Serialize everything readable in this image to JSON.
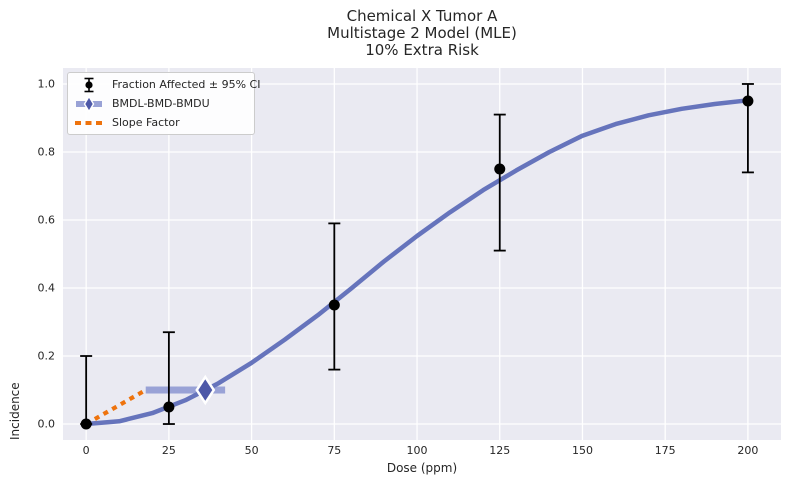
{
  "figure": {
    "title_lines": [
      "Chemical X Tumor A",
      "Multistage 2 Model (MLE)",
      "10% Extra Risk"
    ]
  },
  "axes": {
    "xlabel": "Dose (ppm)",
    "ylabel": "Incidence"
  },
  "legend": {
    "items": [
      {
        "id": "fraction-affected",
        "label": "Fraction Affected ± 95% CI",
        "color": "#000000"
      },
      {
        "id": "bmd-interval",
        "label": "BMDL-BMD-BMDU",
        "color": "#99a2d6",
        "diamond_color": "#4d58a8"
      },
      {
        "id": "slope-factor",
        "label": "Slope Factor",
        "color": "#ee730d"
      }
    ]
  },
  "chart_data": {
    "type": "line",
    "title": "Chemical X Tumor A — Multistage 2 Model (MLE) — 10% Extra Risk",
    "xlabel": "Dose (ppm)",
    "ylabel": "Incidence",
    "xlim": [
      -7,
      210
    ],
    "ylim": [
      -0.047,
      1.047
    ],
    "x_ticks": [
      0,
      25,
      50,
      75,
      100,
      125,
      150,
      175,
      200
    ],
    "y_ticks": [
      0.0,
      0.2,
      0.4,
      0.6,
      0.8,
      1.0
    ],
    "grid": true,
    "background": "#eaeaf2",
    "gridline_color": "#ffffff",
    "legend_position": "upper left",
    "series": [
      {
        "name": "Multistage 2 model fit",
        "type": "line",
        "color": "#6674bc",
        "x": [
          0,
          10,
          20,
          30,
          40,
          50,
          60,
          70,
          80,
          90,
          100,
          110,
          120,
          130,
          140,
          150,
          160,
          170,
          180,
          190,
          200
        ],
        "y": [
          0.0,
          0.008,
          0.032,
          0.07,
          0.12,
          0.18,
          0.248,
          0.32,
          0.398,
          0.478,
          0.553,
          0.623,
          0.688,
          0.746,
          0.8,
          0.848,
          0.882,
          0.908,
          0.927,
          0.941,
          0.952
        ]
      },
      {
        "name": "Fraction Affected ± 95% CI",
        "type": "scatter-errorbar",
        "color": "#000000",
        "points": [
          {
            "dose": 0,
            "incidence": 0.0,
            "ci_lower": 0.0,
            "ci_upper": 0.2
          },
          {
            "dose": 25,
            "incidence": 0.05,
            "ci_lower": 0.0,
            "ci_upper": 0.27
          },
          {
            "dose": 75,
            "incidence": 0.35,
            "ci_lower": 0.16,
            "ci_upper": 0.59
          },
          {
            "dose": 125,
            "incidence": 0.75,
            "ci_lower": 0.51,
            "ci_upper": 0.91
          },
          {
            "dose": 200,
            "incidence": 0.95,
            "ci_lower": 0.74,
            "ci_upper": 1.0
          }
        ]
      },
      {
        "name": "BMDL-BMD-BMDU",
        "type": "interval",
        "bar_color": "#99a2d6",
        "diamond_color": "#4d58a8",
        "bmdl": 18,
        "bmd": 36,
        "bmdu": 42,
        "bmr": 0.1
      },
      {
        "name": "Slope Factor",
        "type": "dashed-line",
        "color": "#ee730d",
        "x": [
          0,
          18
        ],
        "y": [
          0.0,
          0.1
        ]
      }
    ]
  }
}
